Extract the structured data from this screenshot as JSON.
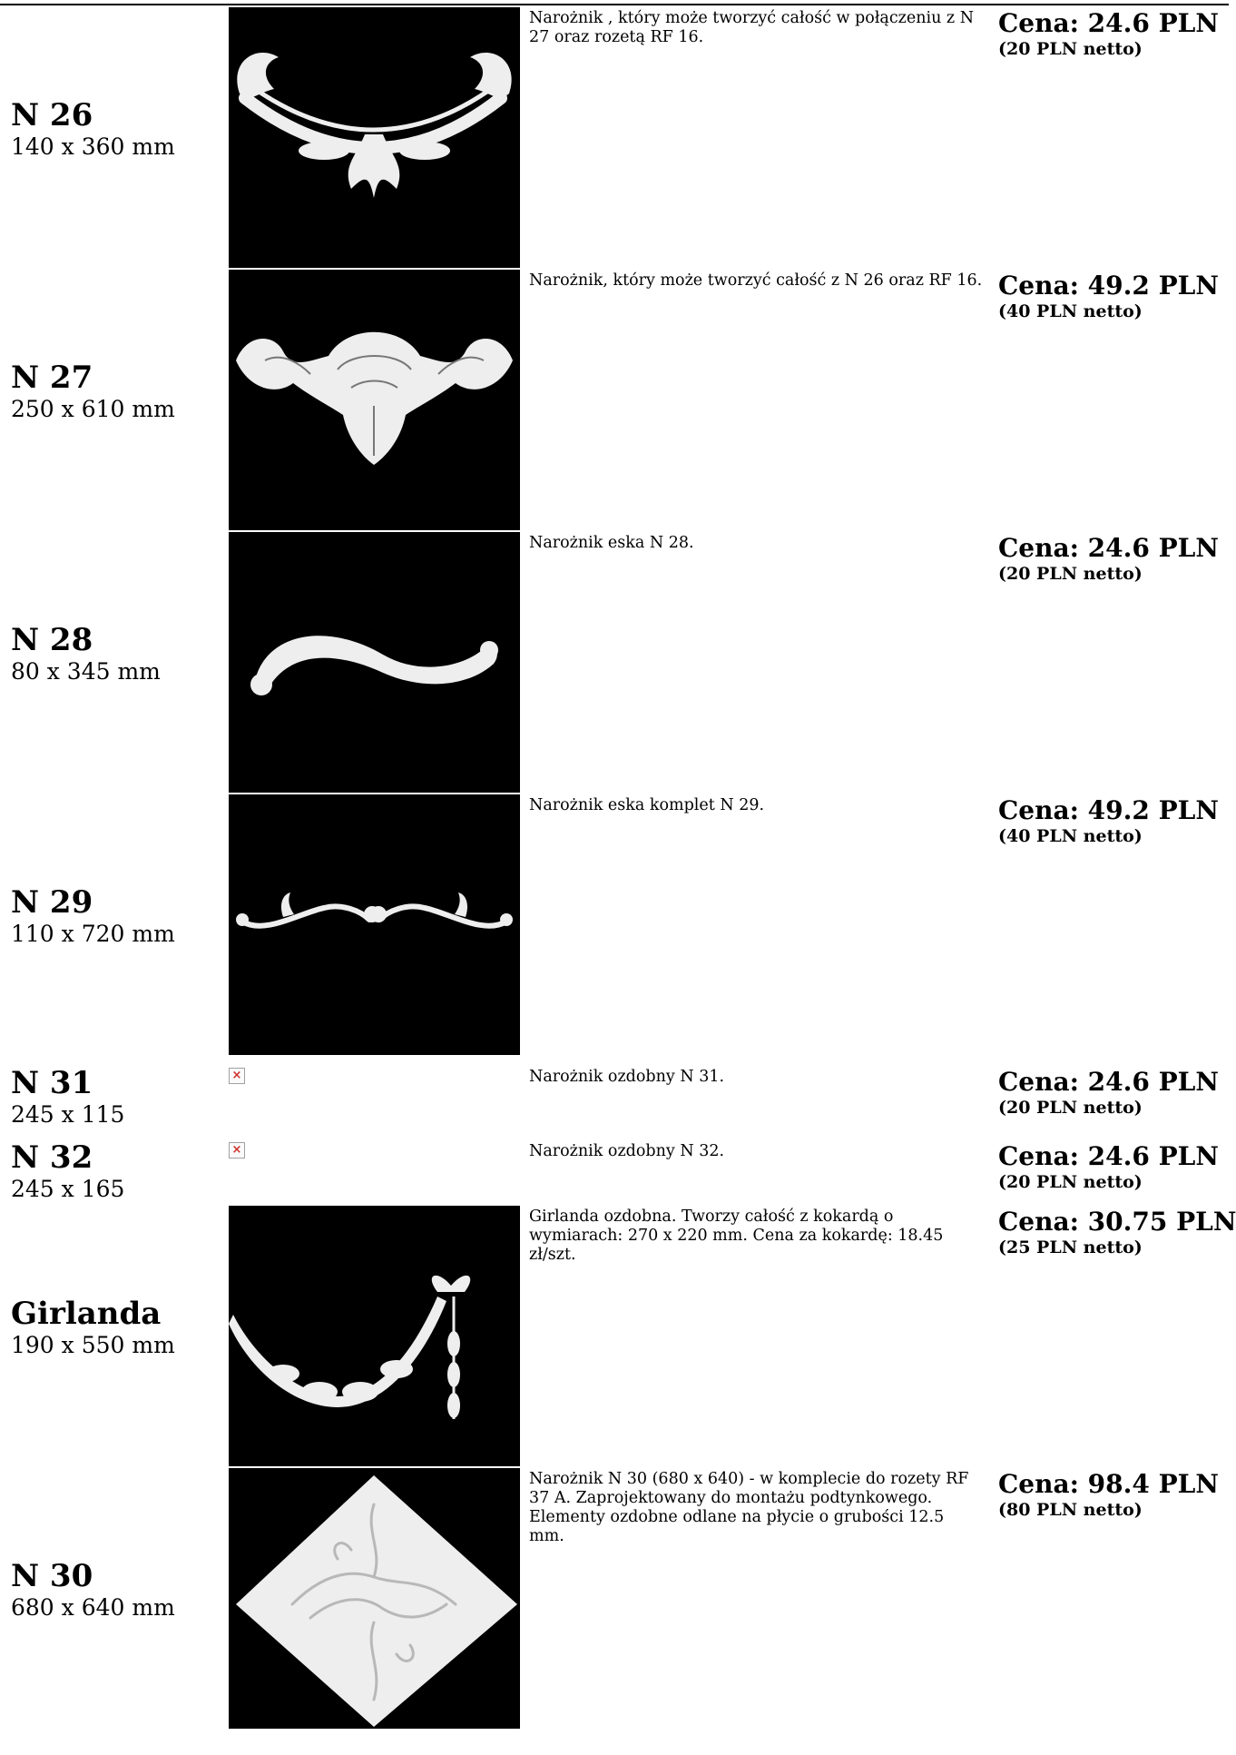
{
  "products": [
    {
      "title": "N 26",
      "dims": "140 x 360 mm",
      "desc": "Narożnik , który może tworzyć całość w połączeniu z N 27 oraz rozetą RF 16.",
      "price": "Cena: 24.6 PLN",
      "netto": "(20 PLN netto)"
    },
    {
      "title": "N 27",
      "dims": "250 x 610 mm",
      "desc": "Narożnik, który może tworzyć całość z N 26 oraz RF 16.",
      "price": "Cena: 49.2 PLN",
      "netto": "(40 PLN netto)"
    },
    {
      "title": "N 28",
      "dims": "80 x 345 mm",
      "desc": "Narożnik eska N 28.",
      "price": "Cena: 24.6 PLN",
      "netto": "(20 PLN netto)"
    },
    {
      "title": "N 29",
      "dims": "110 x 720 mm",
      "desc": "Narożnik eska komplet N 29.",
      "price": "Cena: 49.2 PLN",
      "netto": "(40 PLN netto)"
    },
    {
      "title": "N 31",
      "dims": "245 x 115",
      "desc": "Narożnik ozdobny N 31.",
      "price": "Cena: 24.6 PLN",
      "netto": "(20 PLN netto)"
    },
    {
      "title": "N 32",
      "dims": "245 x 165",
      "desc": "Narożnik ozdobny N 32.",
      "price": "Cena: 24.6 PLN",
      "netto": "(20 PLN netto)"
    },
    {
      "title": "Girlanda",
      "dims": "190 x 550 mm",
      "desc": "Girlanda ozdobna. Tworzy całość z kokardą o wymiarach: 270 x 220 mm. Cena za kokardę: 18.45 zł/szt.",
      "price": "Cena: 30.75 PLN",
      "netto": "(25 PLN netto)"
    },
    {
      "title": "N 30",
      "dims": "680 x 640 mm",
      "desc": "Narożnik N 30 (680 x 640) - w komplecie do rozety RF 37 A. Zaprojektowany do montażu podtynkowego. Elementy ozdobne odlane na płycie o grubości 12.5 mm.",
      "price": "Cena: 98.4 PLN",
      "netto": "(80 PLN netto)"
    }
  ],
  "colors": {
    "image_background": "#000000",
    "ornament": "#eeeeee",
    "broken_image_mark": "#d0302a"
  },
  "icons": {
    "broken_image": "broken-image-icon"
  }
}
